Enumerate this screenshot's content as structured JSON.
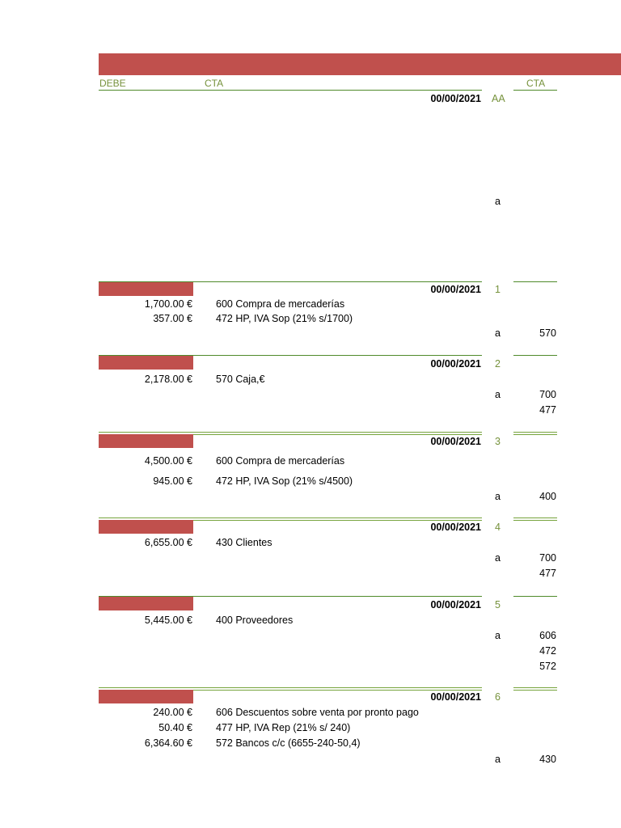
{
  "header": {
    "debe": "DEBE",
    "cta_left": "CTA",
    "cta_right": "CTA"
  },
  "intro": {
    "date": "00/00/2021",
    "num": "AA",
    "a": "a"
  },
  "entries": [
    {
      "date": "00/00/2021",
      "num": "1",
      "debit": [
        {
          "amount": "1,700.00 €",
          "account": "600 Compra de mercaderías"
        },
        {
          "amount": "357.00 €",
          "account": "472 HP, IVA Sop (21% s/1700)"
        }
      ],
      "credit": [
        {
          "a": "a",
          "cta": "570"
        }
      ]
    },
    {
      "date": "00/00/2021",
      "num": "2",
      "debit": [
        {
          "amount": "2,178.00 €",
          "account": "570 Caja,€"
        }
      ],
      "credit": [
        {
          "a": "a",
          "cta": "700"
        },
        {
          "a": "",
          "cta": "477"
        }
      ]
    },
    {
      "date": "00/00/2021",
      "num": "3",
      "debit": [
        {
          "amount": "4,500.00 €",
          "account": "600 Compra de mercaderías"
        },
        {
          "amount": "945.00 €",
          "account": "472 HP, IVA Sop (21% s/4500)"
        }
      ],
      "credit": [
        {
          "a": "a",
          "cta": "400"
        }
      ]
    },
    {
      "date": "00/00/2021",
      "num": "4",
      "debit": [
        {
          "amount": "6,655.00 €",
          "account": "430 Clientes"
        }
      ],
      "credit": [
        {
          "a": "a",
          "cta": "700"
        },
        {
          "a": "",
          "cta": "477"
        }
      ]
    },
    {
      "date": "00/00/2021",
      "num": "5",
      "debit": [
        {
          "amount": "5,445.00 €",
          "account": "400 Proveedores"
        }
      ],
      "credit": [
        {
          "a": "a",
          "cta": "606"
        },
        {
          "a": "",
          "cta": "472"
        },
        {
          "a": "",
          "cta": "572"
        }
      ]
    },
    {
      "date": "00/00/2021",
      "num": "6",
      "debit": [
        {
          "amount": "240.00 €",
          "account": "606 Descuentos sobre venta por pronto pago"
        },
        {
          "amount": "50.40 €",
          "account": "477 HP, IVA Rep (21% s/ 240)"
        },
        {
          "amount": "6,364.60 €",
          "account": "572 Bancos c/c (6655-240-50,4)"
        }
      ],
      "credit": [
        {
          "a": "a",
          "cta": "430"
        }
      ]
    }
  ]
}
